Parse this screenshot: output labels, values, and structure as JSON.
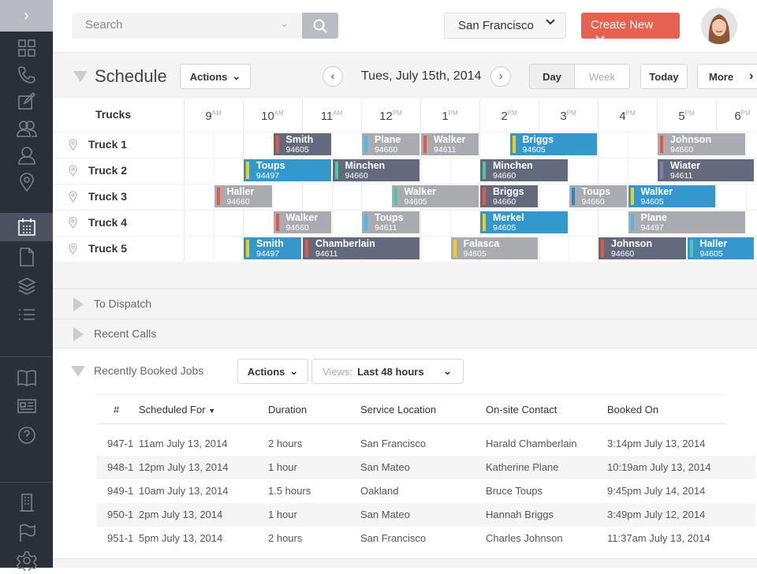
{
  "sidebar": {
    "items": [
      "dashboard",
      "phone",
      "notes",
      "customers",
      "user",
      "location",
      "calendar",
      "document",
      "layers",
      "list",
      "book",
      "id-card",
      "help",
      "building",
      "flag",
      "settings"
    ],
    "active": "calendar"
  },
  "header": {
    "search_placeholder": "Search",
    "location": "San Francisco",
    "create_label": "Create New"
  },
  "schedule": {
    "title": "Schedule",
    "actions_label": "Actions",
    "date": "Tues, July 15th, 2014",
    "view_day": "Day",
    "view_week": "Week",
    "today_label": "Today",
    "more_label": "More",
    "trucks_header": "Trucks",
    "hours": [
      {
        "h": "9",
        "p": "AM"
      },
      {
        "h": "10",
        "p": "AM"
      },
      {
        "h": "11",
        "p": "AM"
      },
      {
        "h": "12",
        "p": "PM"
      },
      {
        "h": "1",
        "p": "PM"
      },
      {
        "h": "2",
        "p": "PM"
      },
      {
        "h": "3",
        "p": "PM"
      },
      {
        "h": "4",
        "p": "PM"
      },
      {
        "h": "5",
        "p": "PM"
      },
      {
        "h": "6",
        "p": "PM"
      }
    ],
    "trucks": [
      "Truck 1",
      "Truck 2",
      "Truck 3",
      "Truck 4",
      "Truck 5"
    ],
    "colors": {
      "dark": "#636a7b",
      "blue": "#3498cc",
      "gray": "#a9abb0"
    },
    "stripes": {
      "red": "#e05a47",
      "yellow": "#f5cc1c",
      "teal": "#4cc8a8",
      "lightblue": "#4cb8ec",
      "purple": "#7d80b0",
      "blue": "#2e86c1"
    },
    "events": [
      {
        "truck": 0,
        "name": "Smith",
        "code": "94605",
        "start": 10.5,
        "end": 11.5,
        "color": "dark",
        "stripe": "red"
      },
      {
        "truck": 0,
        "name": "Plane",
        "code": "94660",
        "start": 12,
        "end": 13,
        "color": "gray",
        "stripe": "lightblue"
      },
      {
        "truck": 0,
        "name": "Walker",
        "code": "94611",
        "start": 13,
        "end": 14,
        "color": "gray",
        "stripe": "red"
      },
      {
        "truck": 0,
        "name": "Briggs",
        "code": "94605",
        "start": 14.5,
        "end": 16,
        "color": "blue",
        "stripe": "yellow"
      },
      {
        "truck": 0,
        "name": "Johnson",
        "code": "94660",
        "start": 17,
        "end": 18.5,
        "color": "gray",
        "stripe": "red"
      },
      {
        "truck": 1,
        "name": "Toups",
        "code": "94497",
        "start": 10,
        "end": 11.5,
        "color": "blue",
        "stripe": "yellow"
      },
      {
        "truck": 1,
        "name": "Minchen",
        "code": "94660",
        "start": 11.5,
        "end": 13,
        "color": "dark",
        "stripe": "teal"
      },
      {
        "truck": 1,
        "name": "Minchen",
        "code": "94660",
        "start": 14,
        "end": 15.5,
        "color": "dark",
        "stripe": "teal"
      },
      {
        "truck": 1,
        "name": "Wiater",
        "code": "94611",
        "start": 17,
        "end": 18.65,
        "color": "dark",
        "stripe": "purple"
      },
      {
        "truck": 2,
        "name": "Haller",
        "code": "94660",
        "start": 9.5,
        "end": 10.5,
        "color": "gray",
        "stripe": "red"
      },
      {
        "truck": 2,
        "name": "Walker",
        "code": "94605",
        "start": 12.5,
        "end": 14,
        "color": "gray",
        "stripe": "teal"
      },
      {
        "truck": 2,
        "name": "Briggs",
        "code": "94660",
        "start": 14,
        "end": 15,
        "color": "dark",
        "stripe": "red"
      },
      {
        "truck": 2,
        "name": "Toups",
        "code": "94660",
        "start": 15.5,
        "end": 16.5,
        "color": "gray",
        "stripe": "blue"
      },
      {
        "truck": 2,
        "name": "Walker",
        "code": "94605",
        "start": 16.5,
        "end": 18,
        "color": "blue",
        "stripe": "yellow"
      },
      {
        "truck": 3,
        "name": "Walker",
        "code": "94660",
        "start": 10.5,
        "end": 11.5,
        "color": "gray",
        "stripe": "red"
      },
      {
        "truck": 3,
        "name": "Toups",
        "code": "94611",
        "start": 12,
        "end": 13,
        "color": "gray",
        "stripe": "lightblue"
      },
      {
        "truck": 3,
        "name": "Merkel",
        "code": "94605",
        "start": 14,
        "end": 15.5,
        "color": "blue",
        "stripe": "yellow"
      },
      {
        "truck": 3,
        "name": "Plane",
        "code": "94497",
        "start": 16.5,
        "end": 18.5,
        "color": "gray",
        "stripe": "lightblue"
      },
      {
        "truck": 4,
        "name": "Smith",
        "code": "94497",
        "start": 10,
        "end": 11,
        "color": "blue",
        "stripe": "yellow"
      },
      {
        "truck": 4,
        "name": "Chamberlain",
        "code": "94611",
        "start": 11,
        "end": 13,
        "color": "dark",
        "stripe": "red"
      },
      {
        "truck": 4,
        "name": "Falasca",
        "code": "94605",
        "start": 13.5,
        "end": 15,
        "color": "gray",
        "stripe": "yellow"
      },
      {
        "truck": 4,
        "name": "Johnson",
        "code": "94660",
        "start": 16,
        "end": 17.5,
        "color": "dark",
        "stripe": "red"
      },
      {
        "truck": 4,
        "name": "Haller",
        "code": "94605",
        "start": 17.5,
        "end": 18.65,
        "color": "blue",
        "stripe": "teal"
      }
    ]
  },
  "sections": {
    "to_dispatch": "To Dispatch",
    "recent_calls": "Recent Calls"
  },
  "booked": {
    "title": "Recently Booked Jobs",
    "actions_label": "Actions",
    "views_prefix": "Views:",
    "views_value": "Last 48 hours",
    "columns": [
      "#",
      "Scheduled For",
      "Duration",
      "Service Location",
      "On-site Contact",
      "Booked On"
    ],
    "rows": [
      [
        "947-1",
        "11am July 13, 2014",
        "2 hours",
        "San Francisco",
        "Harald Chamberlain",
        "3:14pm July 13, 2014"
      ],
      [
        "948-1",
        "12pm July 13, 2014",
        "1 hour",
        "San Mateo",
        "Katherine Plane",
        "10:19am July 13, 2014"
      ],
      [
        "949-1",
        "10am July 13, 2014",
        "1.5 hours",
        "Oakland",
        "Bruce Toups",
        "9:45pm July 14, 2014"
      ],
      [
        "950-1",
        "2pm July 13, 2014",
        "1 hour",
        "San Mateo",
        "Hannah Briggs",
        "3:49pm July 12, 2014"
      ],
      [
        "951-1",
        "5pm July 13, 2014",
        "2 hours",
        "San Francisco",
        "Charles Johnson",
        "11:37am July 13, 2014"
      ]
    ]
  }
}
